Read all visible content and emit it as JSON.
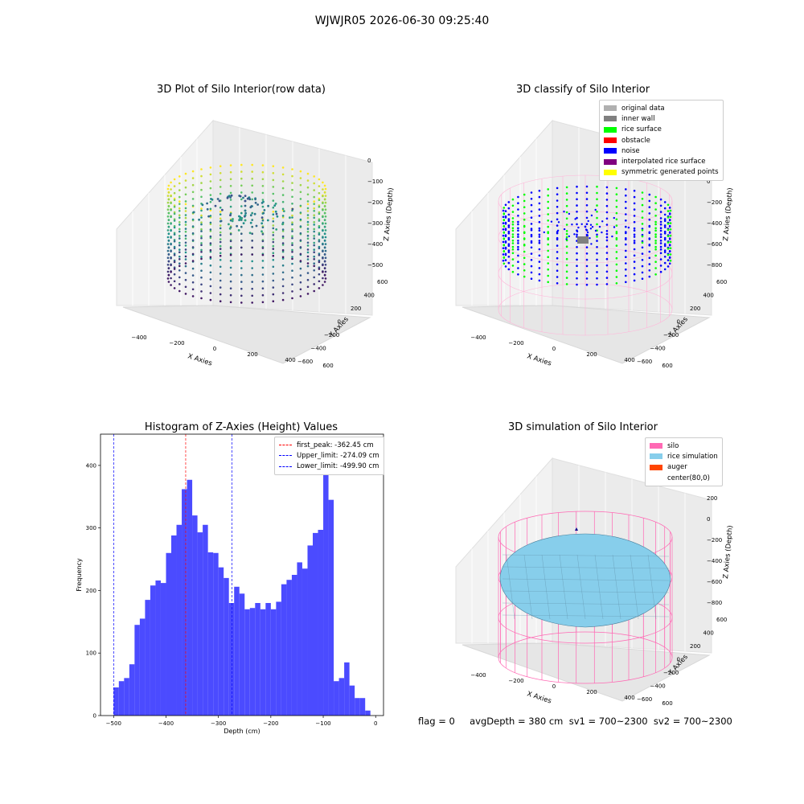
{
  "figure": {
    "title": "WJWJR05 2026-06-30 09:25:40"
  },
  "status_line": "flag = 0     avgDepth = 380 cm  sv1 = 700~2300  sv2 = 700~2300",
  "panels": {
    "raw": {
      "title": "3D Plot of Silo Interior(row data)",
      "x_label": "X Axies",
      "y_label": "Y Axies",
      "z_label": "Z Axies (Depth)",
      "x_ticks": [
        "−400",
        "−200",
        "0",
        "200",
        "400",
        "600"
      ],
      "y_ticks": [
        "−600",
        "−400",
        "−200",
        "0",
        "200",
        "400",
        "600"
      ],
      "z_ticks": [
        "0",
        "−100",
        "−200",
        "−300",
        "−400",
        "−500"
      ]
    },
    "classify": {
      "title": "3D classify of Silo Interior",
      "x_label": "X Axies",
      "y_label": "Y Axies",
      "z_label": "Z Axies (Depth)",
      "x_ticks": [
        "−400",
        "−200",
        "0",
        "200",
        "400",
        "600"
      ],
      "y_ticks": [
        "−600",
        "−400",
        "−200",
        "0",
        "200",
        "400",
        "600"
      ],
      "z_ticks": [
        "200",
        "0",
        "−200",
        "−400",
        "−600",
        "−800"
      ],
      "legend": [
        {
          "label": "original data",
          "color": "#b0b0b0"
        },
        {
          "label": "inner wall",
          "color": "#808080"
        },
        {
          "label": "rice surface",
          "color": "#00ff00"
        },
        {
          "label": "obstacle",
          "color": "#ff0000"
        },
        {
          "label": "noise",
          "color": "#0000ff"
        },
        {
          "label": "interpolated rice surface",
          "color": "#800080"
        },
        {
          "label": "symmetric generated points",
          "color": "#ffff00"
        }
      ]
    },
    "simulation": {
      "title": "3D simulation of Silo Interior",
      "x_label": "X Axies",
      "y_label": "Y Axies",
      "z_label": "Z Axies (Depth)",
      "x_ticks": [
        "−400",
        "−200",
        "0",
        "200",
        "400",
        "600"
      ],
      "y_ticks": [
        "−600",
        "−400",
        "−200",
        "0",
        "200",
        "400",
        "600"
      ],
      "z_ticks": [
        "200",
        "0",
        "−200",
        "−400",
        "−600",
        "−800"
      ],
      "legend": [
        {
          "label": "silo",
          "color": "#ff69b4"
        },
        {
          "label": "rice simulation",
          "color": "#87ceeb"
        },
        {
          "label": "auger",
          "color": "#ff4500"
        },
        {
          "label": "center(80,0)",
          "color": "#ffffff"
        }
      ]
    }
  },
  "chart_data": {
    "type": "bar",
    "title": "Histogram of Z-Axies (Height) Values",
    "xlabel": "Depth (cm)",
    "ylabel": "Frequency",
    "xlim": [
      -525,
      15
    ],
    "ylim": [
      0,
      450
    ],
    "x_ticks": [
      "−500",
      "−400",
      "−300",
      "−200",
      "−100",
      "0"
    ],
    "y_ticks": [
      "0",
      "100",
      "200",
      "300",
      "400"
    ],
    "bar_color": "#4b4bff",
    "bins": {
      "start": -500,
      "width": 10,
      "values": [
        45,
        55,
        60,
        82,
        145,
        155,
        185,
        208,
        216,
        212,
        260,
        288,
        305,
        362,
        377,
        320,
        293,
        305,
        261,
        260,
        237,
        220,
        180,
        206,
        195,
        170,
        172,
        180,
        170,
        180,
        170,
        182,
        210,
        217,
        225,
        245,
        235,
        272,
        292,
        297,
        425,
        345,
        55,
        60,
        85,
        48,
        28,
        28,
        8
      ]
    },
    "reference_lines": [
      {
        "label": "first_peak: -362.45 cm",
        "value": -362.45,
        "color": "#ff0000"
      },
      {
        "label": "Upper_limit: -274.09 cm",
        "value": -274.09,
        "color": "#0000ff"
      },
      {
        "label": "Lower_limit: -499.90 cm",
        "value": -499.9,
        "color": "#0000ff"
      }
    ]
  }
}
